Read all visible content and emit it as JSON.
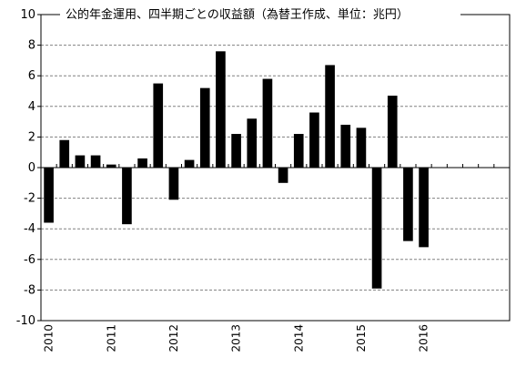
{
  "chart_data": {
    "type": "bar",
    "title": "公的年金運用、四半期ごとの収益額（為替王作成、単位：兆円）",
    "xlabel": "",
    "ylabel": "",
    "ylim": [
      -10,
      10
    ],
    "yticks": [
      10,
      8,
      6,
      4,
      2,
      0,
      -2,
      -4,
      -6,
      -8,
      -10
    ],
    "grid": true,
    "legend": "none",
    "bar_color": "#000000",
    "grid_color": "#808080",
    "x_tick_labels": [
      "2010",
      "2011",
      "2012",
      "2013",
      "2014",
      "2015",
      "2016"
    ],
    "categories": [
      "2010Q1",
      "2010Q2",
      "2010Q3",
      "2010Q4",
      "2011Q1",
      "2011Q2",
      "2011Q3",
      "2011Q4",
      "2012Q1",
      "2012Q2",
      "2012Q3",
      "2012Q4",
      "2013Q1",
      "2013Q2",
      "2013Q3",
      "2013Q4",
      "2014Q1",
      "2014Q2",
      "2014Q3",
      "2014Q4",
      "2015Q1",
      "2015Q2",
      "2015Q3",
      "2015Q4",
      "2016Q1",
      "2016Q2",
      "2016Q3",
      "2016Q4",
      "2017Q1",
      "2017Q2"
    ],
    "values": [
      -3.6,
      1.8,
      0.8,
      0.8,
      0.2,
      -3.7,
      0.6,
      5.5,
      -2.1,
      0.5,
      5.2,
      7.6,
      2.2,
      3.2,
      5.8,
      -1.0,
      2.2,
      3.6,
      6.7,
      2.8,
      2.6,
      -7.9,
      4.7,
      -4.8,
      -5.2,
      0.0,
      0.0,
      0.0,
      0.0,
      0.0
    ]
  }
}
